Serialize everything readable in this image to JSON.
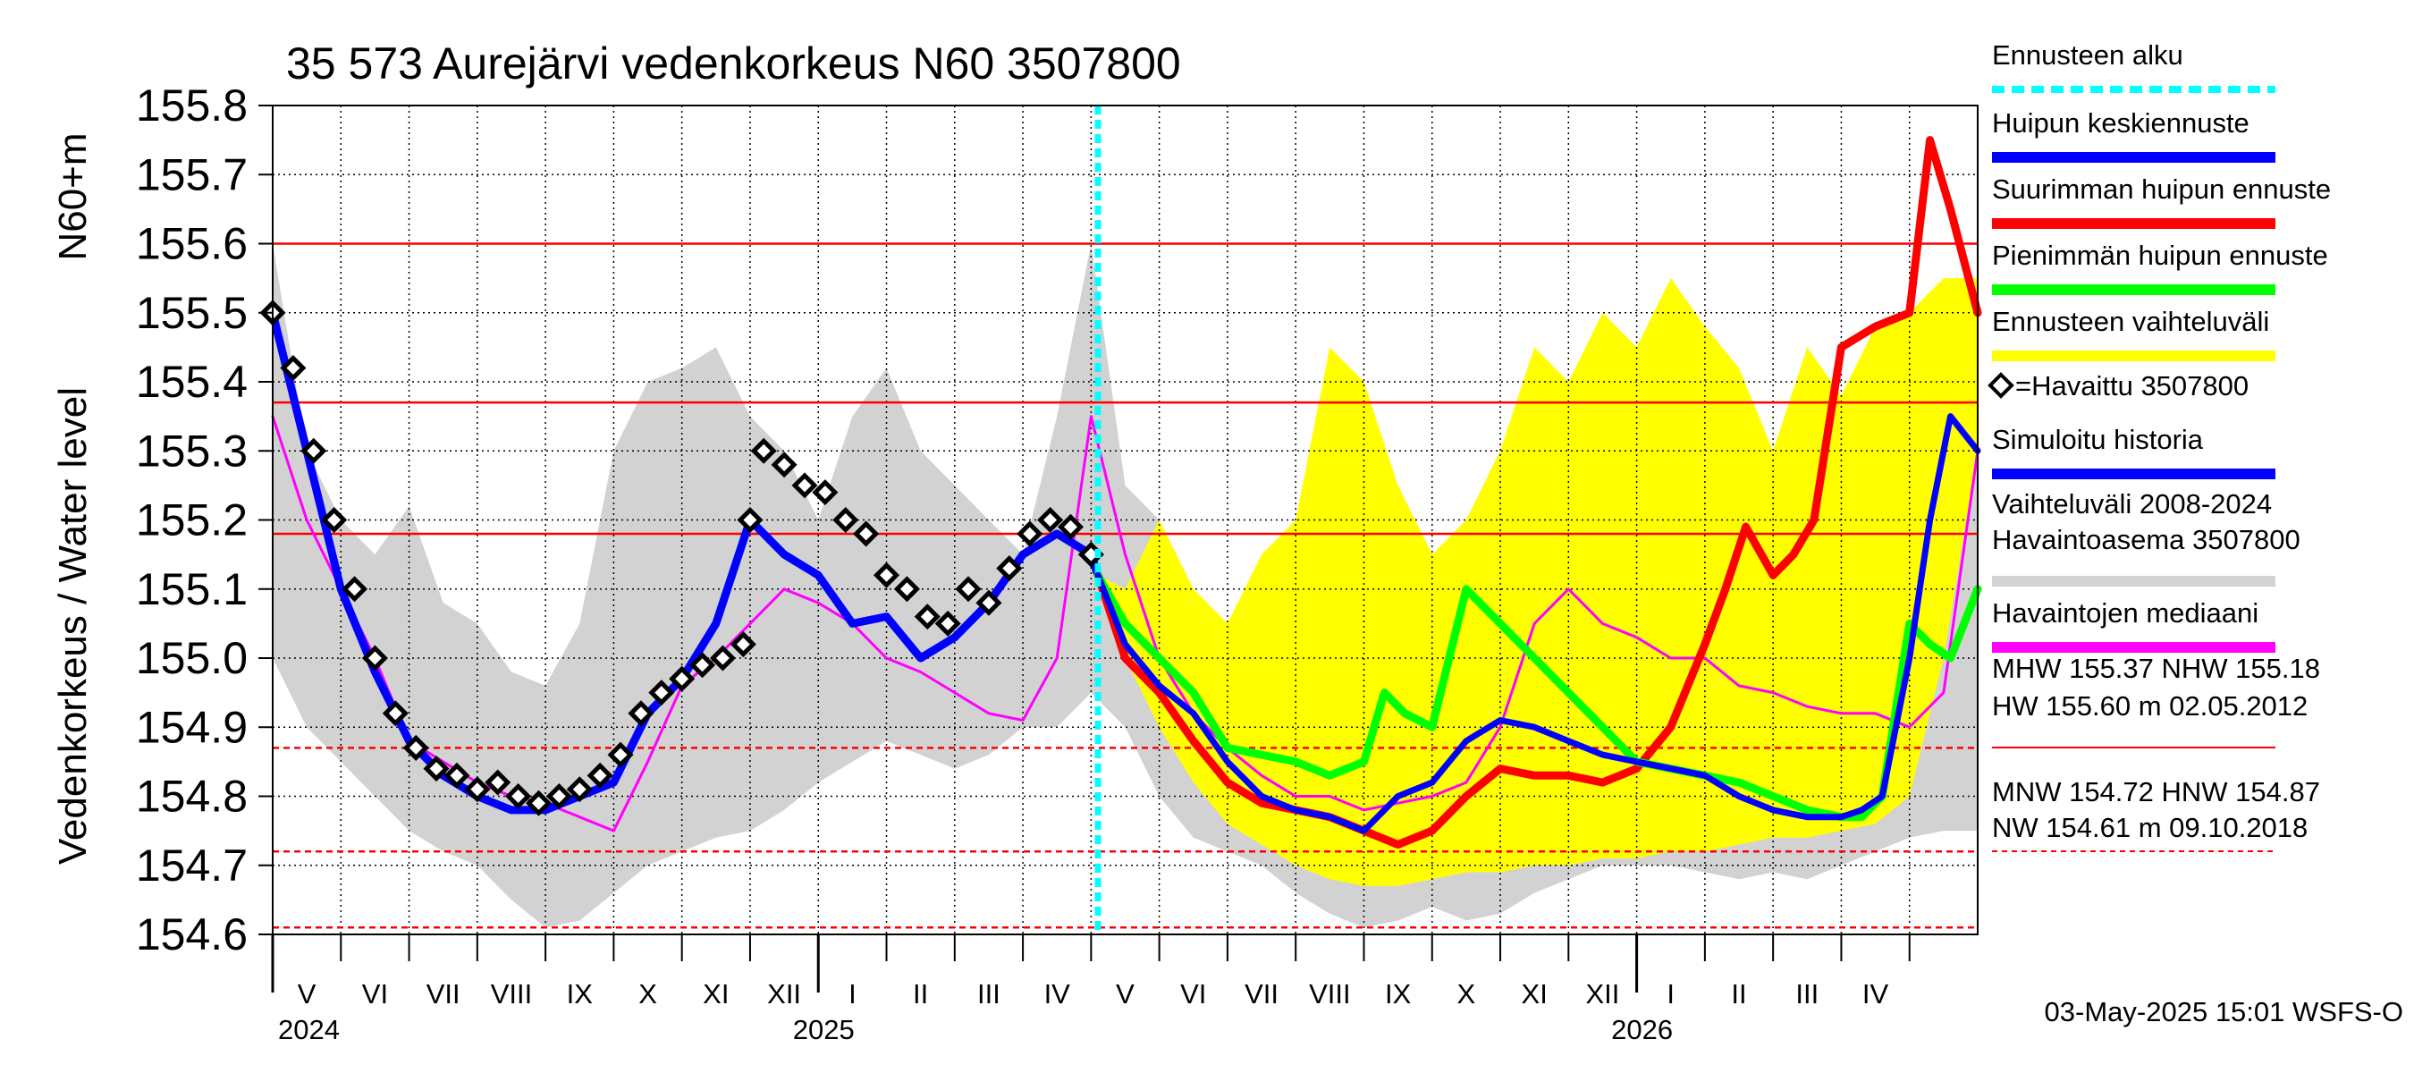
{
  "chart_data": {
    "type": "line",
    "title": "35 573 Aurejärvi vedenkorkeus N60 3507800",
    "ylabel_outer": "Vedenkorkeus / Water level",
    "ylabel_inner": "N60+m",
    "ylim": [
      154.6,
      155.8
    ],
    "yticks": [
      "154.6",
      "154.7",
      "154.8",
      "154.9",
      "155.0",
      "155.1",
      "155.2",
      "155.3",
      "155.4",
      "155.5",
      "155.6",
      "155.7",
      "155.8"
    ],
    "xlim_months": [
      0,
      25
    ],
    "month_labels": [
      "V",
      "VI",
      "VII",
      "VIII",
      "IX",
      "X",
      "XI",
      "XII",
      "I",
      "II",
      "III",
      "IV",
      "V",
      "VI",
      "VII",
      "VIII",
      "IX",
      "X",
      "XI",
      "XII",
      "I",
      "II",
      "III",
      "IV"
    ],
    "year_labels": [
      {
        "label": "2024",
        "month": 0
      },
      {
        "label": "2025",
        "month": 8
      },
      {
        "label": "2026",
        "month": 20
      }
    ],
    "forecast_start_month": 12.1,
    "reference_lines": [
      {
        "name": "HW",
        "value": 155.6,
        "style": "solid"
      },
      {
        "name": "MHW",
        "value": 155.37,
        "style": "solid"
      },
      {
        "name": "NHW",
        "value": 155.18,
        "style": "solid"
      },
      {
        "name": "HNW",
        "value": 154.87,
        "style": "dashed"
      },
      {
        "name": "MNW",
        "value": 154.72,
        "style": "dashed"
      },
      {
        "name": "NW",
        "value": 154.61,
        "style": "dashed"
      }
    ],
    "series": [
      {
        "name": "Vaihteluväli 2008-2024",
        "kind": "band",
        "color": "#d2d2d2",
        "x": [
          0,
          0.5,
          1,
          1.5,
          2,
          2.5,
          3,
          3.5,
          4,
          4.5,
          5,
          5.5,
          6,
          6.5,
          7,
          7.5,
          8,
          8.5,
          9,
          9.5,
          10,
          10.5,
          11,
          11.5,
          12,
          12.5,
          13,
          13.5,
          14,
          14.5,
          15,
          15.5,
          16,
          16.5,
          17,
          17.5,
          18,
          18.5,
          19,
          19.5,
          20,
          20.5,
          21,
          21.5,
          22,
          22.5,
          23,
          23.5,
          24,
          24.5,
          25
        ],
        "upper": [
          155.6,
          155.3,
          155.2,
          155.15,
          155.22,
          155.08,
          155.05,
          154.98,
          154.96,
          155.05,
          155.3,
          155.4,
          155.42,
          155.45,
          155.35,
          155.3,
          155.2,
          155.35,
          155.42,
          155.3,
          155.25,
          155.2,
          155.15,
          155.35,
          155.6,
          155.25,
          155.2,
          155.1,
          155.0,
          154.95,
          154.92,
          155.05,
          154.98,
          155.1,
          155.1,
          155.2,
          155.3,
          155.25,
          155.3,
          155.28,
          155.4,
          155.38,
          155.3,
          155.25,
          155.2,
          155.22,
          155.3,
          155.35,
          155.45,
          155.5,
          155.55
        ],
        "lower": [
          155.0,
          154.9,
          154.85,
          154.8,
          154.75,
          154.72,
          154.7,
          154.65,
          154.61,
          154.62,
          154.66,
          154.7,
          154.72,
          154.74,
          154.75,
          154.78,
          154.82,
          154.85,
          154.88,
          154.86,
          154.84,
          154.86,
          154.9,
          154.9,
          154.95,
          154.9,
          154.8,
          154.74,
          154.72,
          154.7,
          154.66,
          154.63,
          154.61,
          154.62,
          154.64,
          154.62,
          154.63,
          154.66,
          154.68,
          154.7,
          154.7,
          154.7,
          154.69,
          154.68,
          154.69,
          154.68,
          154.7,
          154.72,
          154.74,
          154.75,
          154.75
        ]
      },
      {
        "name": "Ennusteen vaihteluväli",
        "kind": "band",
        "color": "#ffff00",
        "x": [
          12.1,
          12.5,
          13,
          13.5,
          14,
          14.5,
          15,
          15.5,
          16,
          16.5,
          17,
          17.5,
          18,
          18.5,
          19,
          19.5,
          20,
          20.5,
          21,
          21.5,
          22,
          22.5,
          23,
          23.5,
          24,
          24.5,
          25
        ],
        "upper": [
          155.12,
          155.1,
          155.2,
          155.1,
          155.05,
          155.15,
          155.2,
          155.45,
          155.4,
          155.25,
          155.15,
          155.2,
          155.3,
          155.45,
          155.4,
          155.5,
          155.45,
          155.55,
          155.48,
          155.42,
          155.3,
          155.45,
          155.38,
          155.48,
          155.5,
          155.55,
          155.55
        ],
        "lower": [
          155.12,
          155.0,
          154.9,
          154.82,
          154.76,
          154.73,
          154.7,
          154.68,
          154.67,
          154.67,
          154.68,
          154.69,
          154.69,
          154.7,
          154.7,
          154.71,
          154.71,
          154.72,
          154.72,
          154.73,
          154.74,
          154.74,
          154.75,
          154.76,
          154.8,
          155.0,
          155.3
        ]
      },
      {
        "name": "Havaintojen mediaani",
        "kind": "line",
        "color": "#ff00ff",
        "width": 3,
        "x": [
          0,
          0.5,
          1,
          1.5,
          2,
          2.5,
          3,
          3.5,
          4,
          4.5,
          5,
          5.5,
          6,
          6.5,
          7,
          7.5,
          8,
          8.5,
          9,
          9.5,
          10,
          10.5,
          11,
          11.5,
          12,
          12.5,
          13,
          13.5,
          14,
          14.5,
          15,
          15.5,
          16,
          16.5,
          17,
          17.5,
          18,
          18.5,
          19,
          19.5,
          20,
          20.5,
          21,
          21.5,
          22,
          22.5,
          23,
          23.5,
          24,
          24.5,
          25
        ],
        "y": [
          155.35,
          155.2,
          155.1,
          155.0,
          154.88,
          154.85,
          154.82,
          154.8,
          154.79,
          154.77,
          154.75,
          154.85,
          154.96,
          155.0,
          155.05,
          155.1,
          155.08,
          155.05,
          155.0,
          154.98,
          154.95,
          154.92,
          154.91,
          155.0,
          155.35,
          155.15,
          155.0,
          154.92,
          154.87,
          154.83,
          154.8,
          154.8,
          154.78,
          154.79,
          154.8,
          154.82,
          154.9,
          155.05,
          155.1,
          155.05,
          155.03,
          155.0,
          155.0,
          154.96,
          154.95,
          154.93,
          154.92,
          154.92,
          154.9,
          154.95,
          155.3
        ]
      },
      {
        "name": "Simuloitu historia",
        "kind": "line",
        "color": "#0000ff",
        "width": 9,
        "x": [
          0,
          0.5,
          1,
          1.5,
          2,
          2.5,
          3,
          3.5,
          4,
          4.5,
          5,
          5.5,
          6,
          6.5,
          7,
          7.5,
          8,
          8.5,
          9,
          9.5,
          10,
          10.5,
          11,
          11.5,
          12,
          12.1
        ],
        "y": [
          155.5,
          155.3,
          155.1,
          154.98,
          154.88,
          154.83,
          154.8,
          154.78,
          154.78,
          154.8,
          154.82,
          154.92,
          154.97,
          155.05,
          155.2,
          155.15,
          155.12,
          155.05,
          155.06,
          155.0,
          155.03,
          155.08,
          155.15,
          155.18,
          155.15,
          155.12
        ]
      },
      {
        "name": "Havaittu 3507800",
        "kind": "markers",
        "color": "#000000",
        "x": [
          0,
          0.3,
          0.6,
          0.9,
          1.2,
          1.5,
          1.8,
          2.1,
          2.4,
          2.7,
          3,
          3.3,
          3.6,
          3.9,
          4.2,
          4.5,
          4.8,
          5.1,
          5.4,
          5.7,
          6,
          6.3,
          6.6,
          6.9,
          7,
          7.2,
          7.5,
          7.8,
          8.1,
          8.4,
          8.7,
          9,
          9.3,
          9.6,
          9.9,
          10.2,
          10.5,
          10.8,
          11.1,
          11.4,
          11.7,
          12
        ],
        "y": [
          155.5,
          155.42,
          155.3,
          155.2,
          155.1,
          155.0,
          154.92,
          154.87,
          154.84,
          154.83,
          154.81,
          154.82,
          154.8,
          154.79,
          154.8,
          154.81,
          154.83,
          154.86,
          154.92,
          154.95,
          154.97,
          154.99,
          155.0,
          155.02,
          155.2,
          155.3,
          155.28,
          155.25,
          155.24,
          155.2,
          155.18,
          155.12,
          155.1,
          155.06,
          155.05,
          155.1,
          155.08,
          155.13,
          155.18,
          155.2,
          155.19,
          155.15
        ]
      },
      {
        "name": "Suurimman huipun ennuste",
        "kind": "line",
        "color": "#ff0000",
        "width": 9,
        "x": [
          12.1,
          12.5,
          13,
          13.5,
          14,
          14.5,
          15,
          15.5,
          16,
          16.5,
          17,
          17.5,
          18,
          18.5,
          19,
          19.5,
          20,
          20.5,
          21,
          21.3,
          21.6,
          22,
          22.3,
          22.6,
          23,
          23.5,
          24,
          24.3,
          24.6,
          25
        ],
        "y": [
          155.12,
          155.0,
          154.95,
          154.88,
          154.82,
          154.79,
          154.78,
          154.77,
          154.75,
          154.73,
          154.75,
          154.8,
          154.84,
          154.83,
          154.83,
          154.82,
          154.84,
          154.9,
          155.02,
          155.1,
          155.19,
          155.12,
          155.15,
          155.2,
          155.45,
          155.48,
          155.5,
          155.75,
          155.65,
          155.5
        ]
      },
      {
        "name": "Pienimmän huipun ennuste",
        "kind": "line",
        "color": "#00ff00",
        "width": 9,
        "x": [
          12.1,
          12.5,
          13,
          13.5,
          14,
          14.5,
          15,
          15.5,
          16,
          16.3,
          16.6,
          17,
          17.5,
          18,
          18.5,
          19,
          19.5,
          20,
          20.5,
          21,
          21.5,
          22,
          22.5,
          23,
          23.3,
          23.6,
          24,
          24.3,
          24.6,
          25
        ],
        "y": [
          155.12,
          155.05,
          155.0,
          154.95,
          154.87,
          154.86,
          154.85,
          154.83,
          154.85,
          154.95,
          154.92,
          154.9,
          155.1,
          155.05,
          155.0,
          154.95,
          154.9,
          154.85,
          154.84,
          154.83,
          154.82,
          154.8,
          154.78,
          154.77,
          154.77,
          154.8,
          155.05,
          155.02,
          155.0,
          155.1
        ]
      },
      {
        "name": "Huipun keskiennuste",
        "kind": "line",
        "color": "#0000ff",
        "width": 7,
        "x": [
          12.1,
          12.5,
          13,
          13.5,
          14,
          14.5,
          15,
          15.5,
          16,
          16.5,
          17,
          17.5,
          18,
          18.5,
          19,
          19.5,
          20,
          20.5,
          21,
          21.5,
          22,
          22.5,
          23,
          23.3,
          23.6,
          24,
          24.3,
          24.6,
          25
        ],
        "y": [
          155.12,
          155.02,
          154.96,
          154.92,
          154.85,
          154.8,
          154.78,
          154.77,
          154.75,
          154.8,
          154.82,
          154.88,
          154.91,
          154.9,
          154.88,
          154.86,
          154.85,
          154.84,
          154.83,
          154.8,
          154.78,
          154.77,
          154.77,
          154.78,
          154.8,
          155.0,
          155.2,
          155.35,
          155.3
        ]
      }
    ],
    "legend": [
      {
        "label": "Ennusteen alku",
        "color": "#00ffff",
        "style": "dashed"
      },
      {
        "label": "Huipun keskiennuste",
        "color": "#0000ff",
        "style": "solid"
      },
      {
        "label": "Suurimman huipun ennuste",
        "color": "#ff0000",
        "style": "solid"
      },
      {
        "label": "Pienimmän huipun ennuste",
        "color": "#00ff00",
        "style": "solid"
      },
      {
        "label": "Ennusteen vaihteluväli",
        "color": "#ffff00",
        "style": "solid"
      },
      {
        "label": "=Havaittu 3507800",
        "color": "#000000",
        "style": "marker"
      },
      {
        "label": "Simuloitu historia",
        "color": "#0000ff",
        "style": "solid"
      },
      {
        "label": "Vaihteluväli 2008-2024",
        "label2": " Havaintoasema 3507800",
        "color": "#d2d2d2",
        "style": "solid"
      },
      {
        "label": "Havaintojen mediaani",
        "color": "#ff00ff",
        "style": "solid"
      }
    ],
    "stats": {
      "line1": "MHW 155.37 NHW 155.18",
      "line2": "HW 155.60 m 02.05.2012",
      "line3": "MNW 154.72 HNW 154.87",
      "line4": "NW 154.61 m 09.10.2018"
    },
    "footer": "03-May-2025 15:01 WSFS-O"
  }
}
